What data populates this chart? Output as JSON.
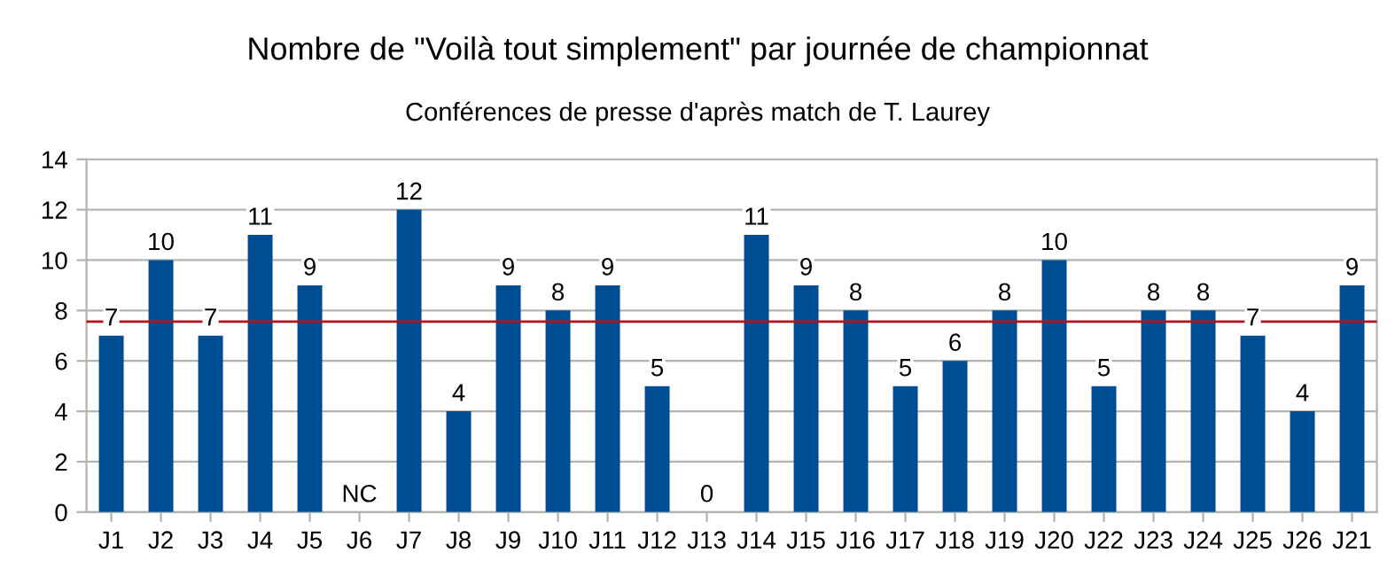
{
  "chart_data": {
    "type": "bar",
    "title": "Nombre de \"Voilà tout simplement\" par journée de championnat",
    "subtitle": "Conférences de presse d'après match de T. Laurey",
    "categories": [
      "J1",
      "J2",
      "J3",
      "J4",
      "J5",
      "J6",
      "J7",
      "J8",
      "J9",
      "J10",
      "J11",
      "J12",
      "J13",
      "J14",
      "J15",
      "J16",
      "J17",
      "J18",
      "J19",
      "J20",
      "J22",
      "J23",
      "J24",
      "J25",
      "J26",
      "J21"
    ],
    "values": [
      7,
      10,
      7,
      11,
      9,
      null,
      12,
      4,
      9,
      8,
      9,
      5,
      0,
      11,
      9,
      8,
      5,
      6,
      8,
      10,
      5,
      8,
      8,
      7,
      4,
      9
    ],
    "value_labels": [
      "7",
      "10",
      "7",
      "11",
      "9",
      "NC",
      "12",
      "4",
      "9",
      "8",
      "9",
      "5",
      "0",
      "11",
      "9",
      "8",
      "5",
      "6",
      "8",
      "10",
      "5",
      "8",
      "8",
      "7",
      "4",
      "9"
    ],
    "color": "#004d94",
    "ylim": [
      0,
      14
    ],
    "yticks": [
      0,
      2,
      4,
      6,
      8,
      10,
      12,
      14
    ],
    "grid": "y",
    "ref_lines": [
      {
        "axis": "y",
        "value": 7.56,
        "color": "#b3131b"
      }
    ]
  }
}
